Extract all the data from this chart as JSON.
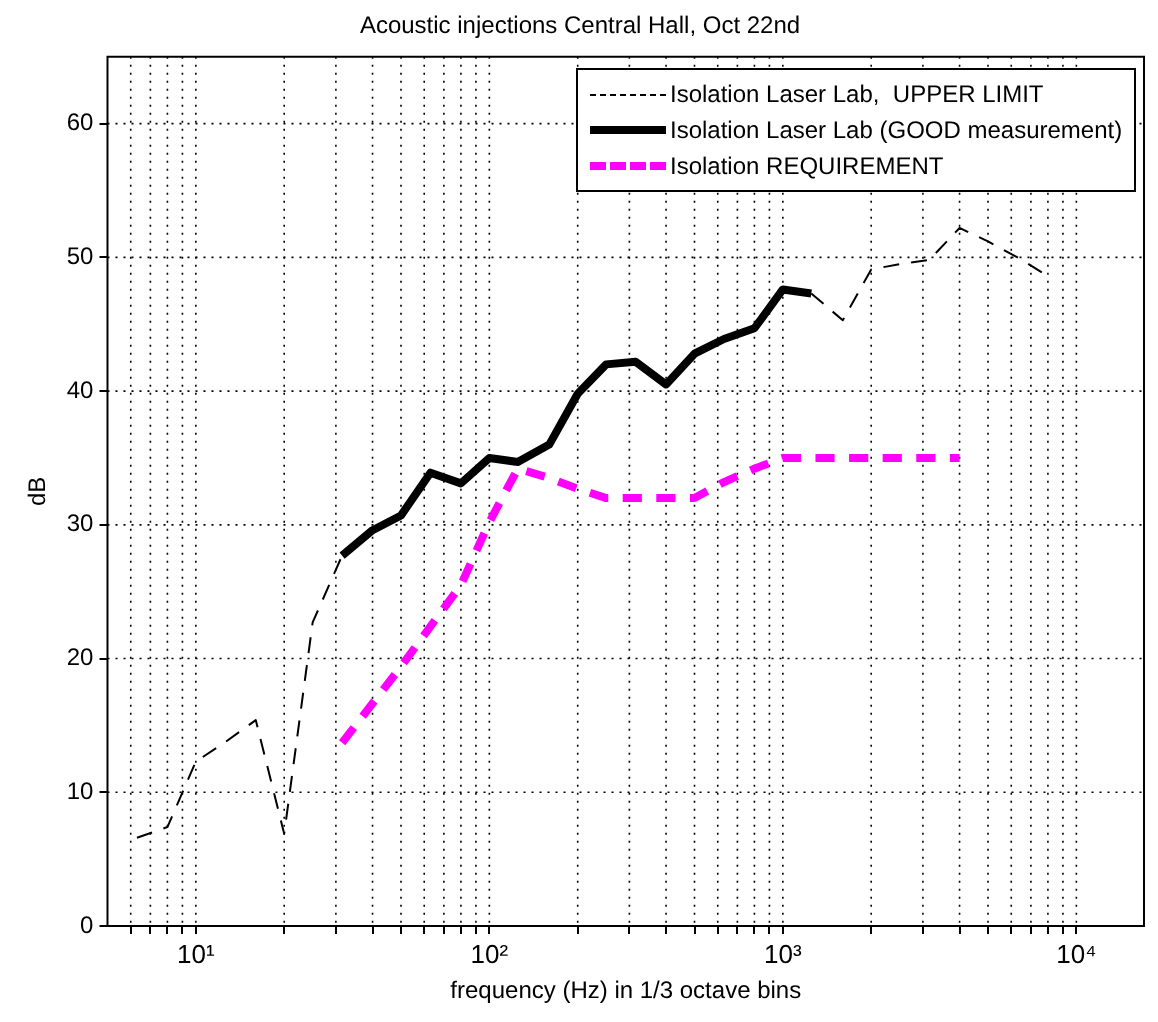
{
  "chart_data": {
    "type": "line",
    "title": "Acoustic injections Central Hall, Oct 22nd",
    "xlabel": "frequency (Hz) in 1/3 octave bins",
    "ylabel": "dB",
    "log": "x",
    "grid": true,
    "legend": "top right",
    "xlim": [
      5,
      17000
    ],
    "xticks": [
      {
        "value": 6,
        "label": null
      },
      {
        "value": 7,
        "label": null
      },
      {
        "value": 8,
        "label": null
      },
      {
        "value": 9,
        "label": null
      },
      {
        "value": 10,
        "label": "10¹"
      },
      {
        "value": 20,
        "label": null
      },
      {
        "value": 30,
        "label": null
      },
      {
        "value": 40,
        "label": null
      },
      {
        "value": 50,
        "label": null
      },
      {
        "value": 60,
        "label": null
      },
      {
        "value": 70,
        "label": null
      },
      {
        "value": 80,
        "label": null
      },
      {
        "value": 90,
        "label": null
      },
      {
        "value": 100,
        "label": "10²"
      },
      {
        "value": 200,
        "label": null
      },
      {
        "value": 300,
        "label": null
      },
      {
        "value": 400,
        "label": null
      },
      {
        "value": 500,
        "label": null
      },
      {
        "value": 600,
        "label": null
      },
      {
        "value": 700,
        "label": null
      },
      {
        "value": 800,
        "label": null
      },
      {
        "value": 900,
        "label": null
      },
      {
        "value": 1000,
        "label": "10³"
      },
      {
        "value": 2000,
        "label": null
      },
      {
        "value": 3000,
        "label": null
      },
      {
        "value": 4000,
        "label": null
      },
      {
        "value": 5000,
        "label": null
      },
      {
        "value": 6000,
        "label": null
      },
      {
        "value": 7000,
        "label": null
      },
      {
        "value": 8000,
        "label": null
      },
      {
        "value": 9000,
        "label": null
      },
      {
        "value": 10000,
        "label": "10⁴"
      }
    ],
    "ylim": [
      0,
      65
    ],
    "yticks": [
      0,
      10,
      20,
      30,
      40,
      50,
      60
    ],
    "series": [
      {
        "name": "Isolation Laser Lab,  UPPER LIMIT",
        "color": "#000000",
        "line_style": "dashed",
        "x": [
          6.3,
          8,
          10,
          12.5,
          16,
          20,
          25,
          31.5,
          40,
          1250,
          1600,
          2000,
          2500,
          3150,
          4000,
          5000,
          6300,
          8000
        ],
        "values": [
          6.6,
          7.4,
          12.3,
          13.7,
          15.4,
          6.9,
          22.7,
          27.7,
          null,
          47.3,
          45.3,
          49.1,
          49.5,
          49.8,
          52.2,
          51.2,
          50.0,
          48.6
        ]
      },
      {
        "name": "Isolation Laser Lab (GOOD measurement)",
        "color": "#000000",
        "line_style": "solid",
        "x": [
          31.5,
          40,
          50,
          63,
          80,
          100,
          125,
          160,
          200,
          250,
          315,
          400,
          500,
          630,
          800,
          1000,
          1250
        ],
        "values": [
          27.7,
          29.6,
          30.7,
          33.9,
          33.1,
          35.0,
          34.7,
          36.0,
          39.8,
          42.0,
          42.2,
          40.5,
          42.8,
          43.9,
          44.7,
          47.6,
          47.3
        ]
      },
      {
        "name": "Isolation REQUIREMENT",
        "color": "#ff00ff",
        "line_style": "dashed",
        "x": [
          31.5,
          50,
          80,
          100,
          125,
          160,
          200,
          250,
          315,
          400,
          500,
          630,
          800,
          1000,
          2000,
          4000
        ],
        "values": [
          13.7,
          19.4,
          25.5,
          30.2,
          34.2,
          33.5,
          32.7,
          32.0,
          32.0,
          32.0,
          32.0,
          33.2,
          34.2,
          35.0,
          35.0,
          35.0
        ]
      }
    ]
  }
}
